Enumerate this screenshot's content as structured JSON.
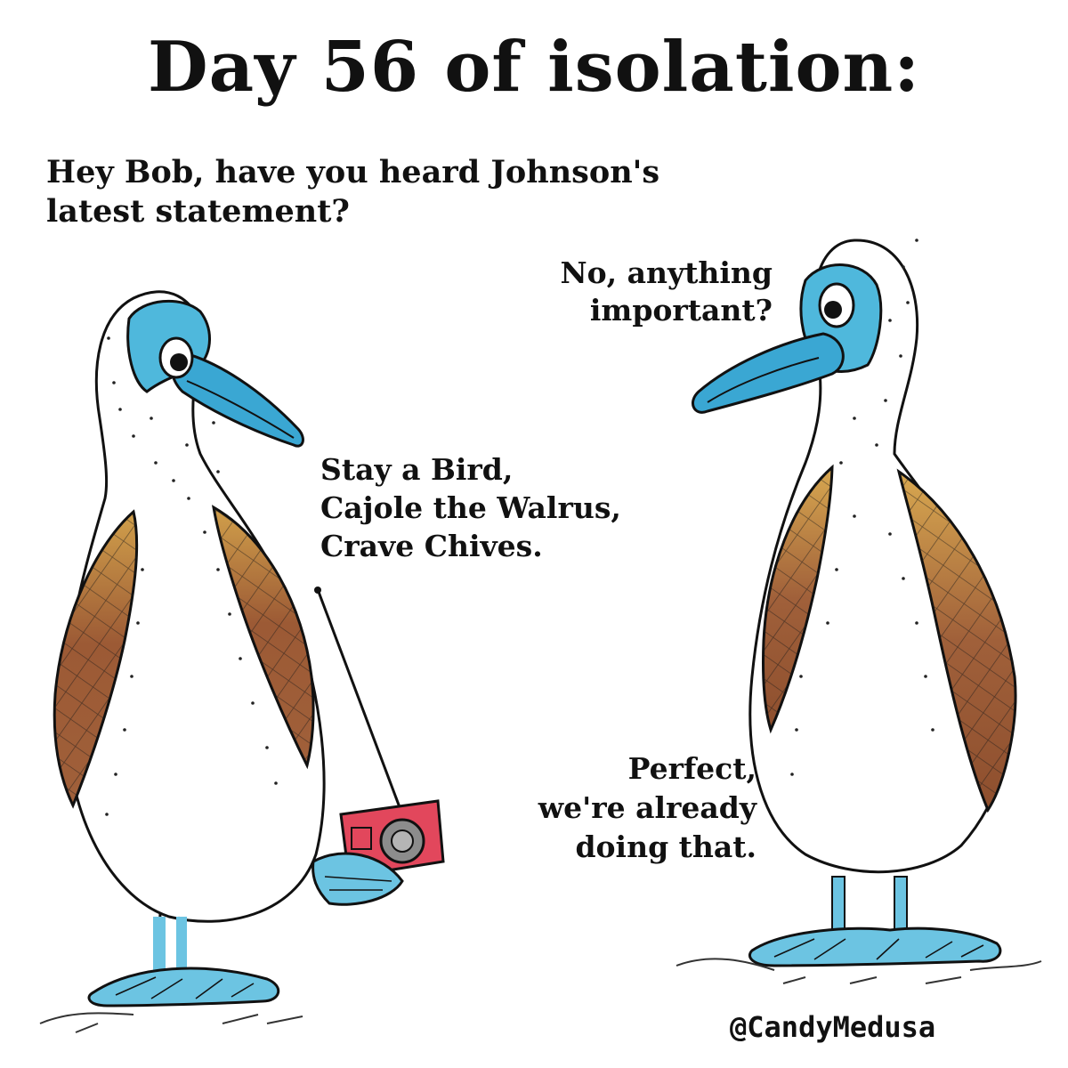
{
  "title": "Day 56 of isolation:",
  "question_lines": [
    "Hey Bob, have you heard Johnson's",
    "latest statement?"
  ],
  "reply1_lines": [
    "No, anything",
    "important?"
  ],
  "statement_lines": [
    "Stay a Bird,",
    "Cajole the Walrus,",
    "Crave Chives."
  ],
  "reply2_lines": [
    "Perfect,",
    "we're already",
    "doing that."
  ],
  "signature": "@CandyMedusa",
  "colors": {
    "face": "#4fb8dc",
    "beak": "#3aa7d3",
    "feet": "#6cc4e2",
    "wing_dark": "#9c5a35",
    "wing_light": "#d1a04b",
    "radio": "#e2475c",
    "ink": "#111111"
  }
}
